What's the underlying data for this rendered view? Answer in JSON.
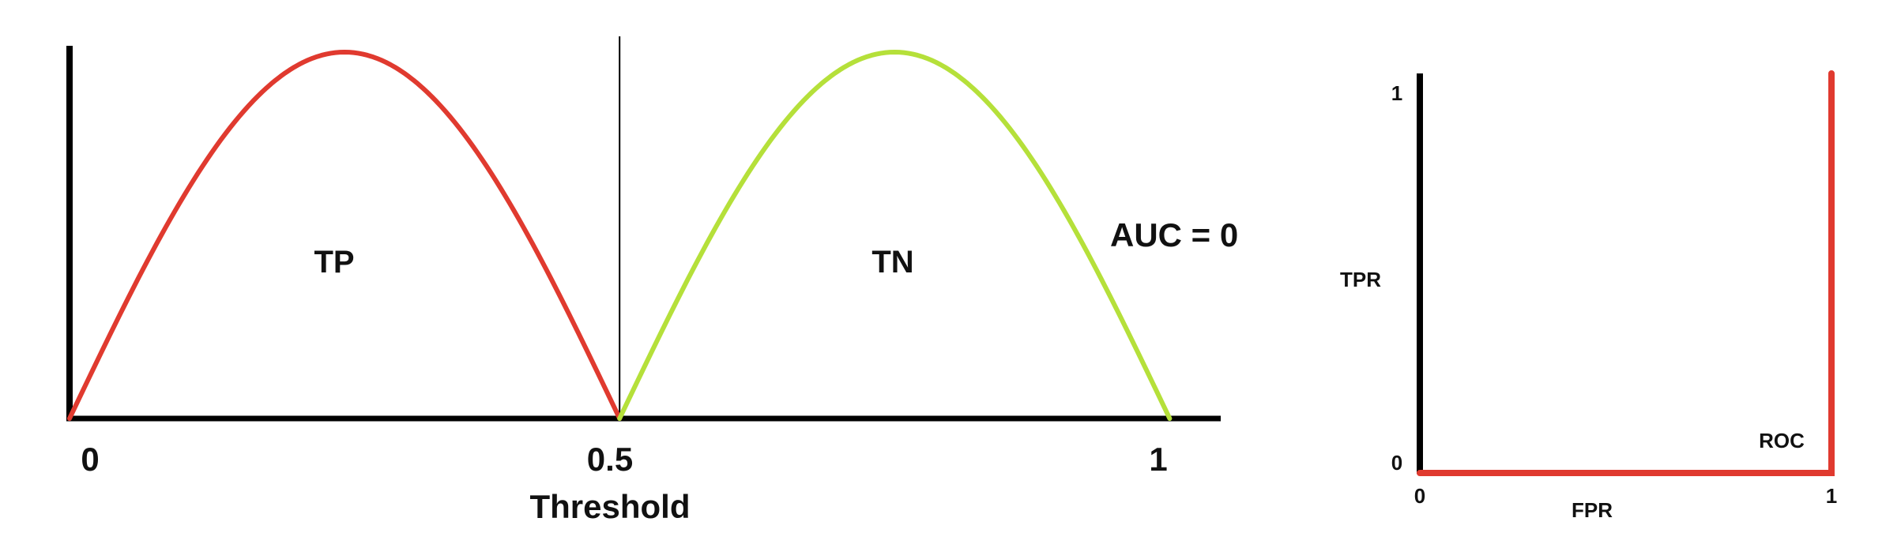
{
  "colors": {
    "tp_curve": "#e03a2f",
    "tn_curve": "#b5e03a",
    "roc_curve": "#e03a2f",
    "axis": "#000000",
    "threshold_line": "#000000"
  },
  "chart_data": [
    {
      "type": "line",
      "title": "",
      "xlabel": "Threshold",
      "ylabel": "",
      "xlim": [
        0,
        1.05
      ],
      "ylim": [
        0,
        1
      ],
      "x_tick_labels": [
        "0",
        "0.5",
        "1"
      ],
      "threshold": 0.5,
      "grid": false,
      "series": [
        {
          "name": "TP",
          "x": [
            0,
            0.05,
            0.1,
            0.15,
            0.2,
            0.25,
            0.3,
            0.35,
            0.4,
            0.45,
            0.5
          ],
          "y": [
            0,
            0.31,
            0.59,
            0.81,
            0.95,
            1.0,
            0.95,
            0.81,
            0.59,
            0.31,
            0
          ]
        },
        {
          "name": "TN",
          "x": [
            0.5,
            0.55,
            0.6,
            0.65,
            0.7,
            0.75,
            0.8,
            0.85,
            0.9,
            0.95,
            1.0
          ],
          "y": [
            0,
            0.31,
            0.59,
            0.81,
            0.95,
            1.0,
            0.95,
            0.81,
            0.59,
            0.31,
            0
          ]
        }
      ],
      "annotations": [
        "AUC = 0"
      ]
    },
    {
      "type": "line",
      "title": "",
      "xlabel": "FPR",
      "ylabel": "TPR",
      "xlim": [
        0,
        1
      ],
      "ylim": [
        0,
        1
      ],
      "x_tick_labels": [
        "0",
        "1"
      ],
      "y_tick_labels": [
        "0",
        "1"
      ],
      "grid": false,
      "series": [
        {
          "name": "ROC",
          "x": [
            0,
            1,
            1
          ],
          "y": [
            0,
            0,
            1
          ]
        }
      ]
    }
  ]
}
